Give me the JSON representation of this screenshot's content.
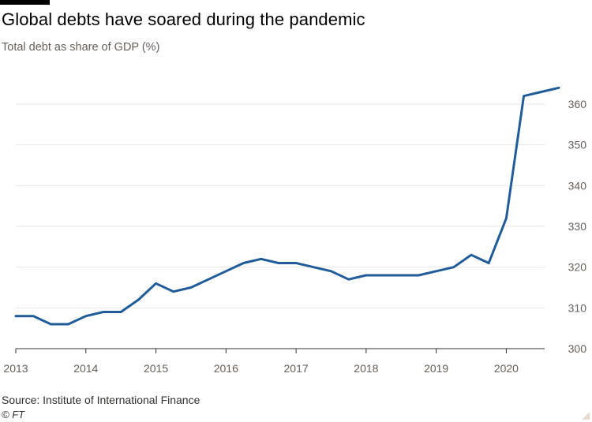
{
  "header": {
    "title": "Global debts have soared during the pandemic",
    "subtitle": "Total debt as share of GDP (%)"
  },
  "footer": {
    "source": "Source: Institute of International Finance",
    "copyright": "© FT"
  },
  "colors": {
    "line": "#1f5c99",
    "grid": "#e9e4df",
    "baseline": "#33302e",
    "tick_text": "#66605c"
  },
  "chart_data": {
    "type": "line",
    "title": "Global debts have soared during the pandemic",
    "subtitle": "Total debt as share of GDP (%)",
    "xlabel": "",
    "ylabel": "",
    "xlim": [
      2013,
      2020.75
    ],
    "ylim": [
      300,
      364
    ],
    "x_ticks": [
      2013,
      2014,
      2015,
      2016,
      2017,
      2018,
      2019,
      2020
    ],
    "x_tick_labels": [
      "2013",
      "2014",
      "2015",
      "2016",
      "2017",
      "2018",
      "2019",
      "2020"
    ],
    "y_ticks": [
      300,
      310,
      320,
      330,
      340,
      350,
      360
    ],
    "y_tick_labels": [
      "300",
      "310",
      "320",
      "330",
      "340",
      "350",
      "360"
    ],
    "y_axis_side": "right",
    "grid": true,
    "series": [
      {
        "color": "#1f5c99",
        "x": [
          2013.0,
          2013.25,
          2013.5,
          2013.75,
          2014.0,
          2014.25,
          2014.5,
          2014.75,
          2015.0,
          2015.25,
          2015.5,
          2015.75,
          2016.0,
          2016.25,
          2016.5,
          2016.75,
          2017.0,
          2017.25,
          2017.5,
          2017.75,
          2018.0,
          2018.25,
          2018.5,
          2018.75,
          2019.0,
          2019.25,
          2019.5,
          2019.75,
          2020.0,
          2020.25,
          2020.5,
          2020.75
        ],
        "values": [
          308,
          308,
          306,
          306,
          308,
          309,
          309,
          312,
          316,
          314,
          315,
          317,
          319,
          321,
          322,
          321,
          321,
          320,
          319,
          317,
          318,
          318,
          318,
          318,
          319,
          320,
          323,
          321,
          332,
          362,
          363,
          364
        ]
      }
    ]
  }
}
